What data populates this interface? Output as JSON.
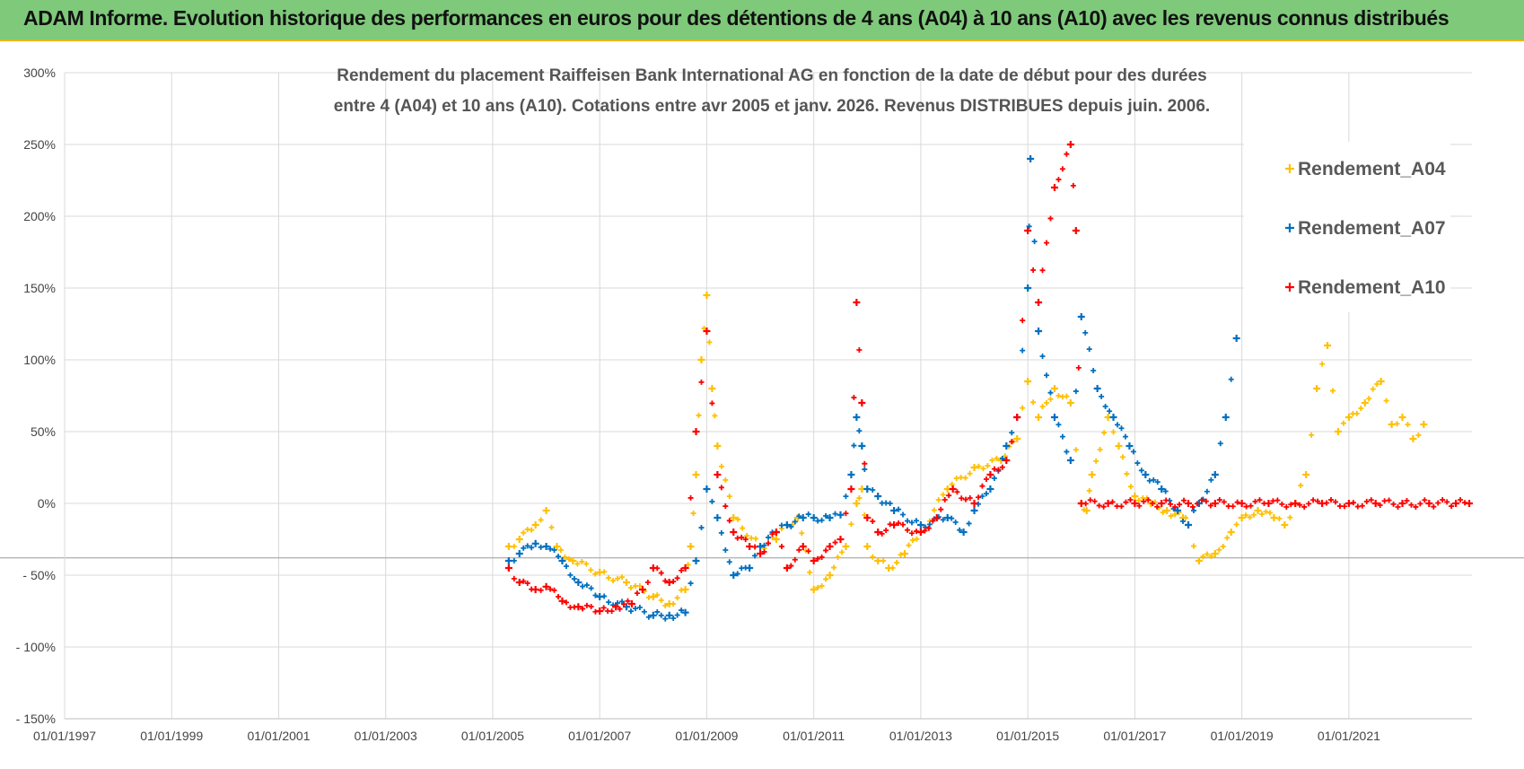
{
  "banner": {
    "title": "ADAM Informe. Evolution historique des performances en euros pour des détentions de 4 ans (A04) à 10 ans (A10) avec les revenus connus distribués"
  },
  "colors": {
    "banner_bg": "#7ec97a",
    "accent": "#f0b400",
    "a04": "#ffc000",
    "a07": "#0070c0",
    "a10": "#ff0000"
  },
  "chart_data": {
    "type": "scatter",
    "title_line1": "Rendement du placement Raiffeisen Bank International AG en fonction de la date de début pour des durées",
    "title_line2": "entre 4 (A04) et 10 ans (A10). Cotations entre avr 2005 et janv. 2026. Revenus DISTRIBUES depuis juin. 2006.",
    "xlabel": "",
    "ylabel": "",
    "xlim": [
      1997.0,
      2023.3
    ],
    "ylim": [
      -150,
      300
    ],
    "y_ticks": [
      300,
      250,
      200,
      150,
      100,
      50,
      0,
      -50,
      -100,
      -150
    ],
    "y_tick_labels": [
      "300%",
      "250%",
      "200%",
      "150%",
      "100%",
      "50%",
      "0%",
      "- 50%",
      "- 100%",
      "- 150%"
    ],
    "x_ticks": [
      1997,
      1999,
      2001,
      2003,
      2005,
      2007,
      2009,
      2011,
      2013,
      2015,
      2017,
      2019,
      2021
    ],
    "x_tick_labels": [
      "01/01/1997",
      "01/01/1999",
      "01/01/2001",
      "01/01/2003",
      "01/01/2005",
      "01/01/2007",
      "01/01/2009",
      "01/01/2011",
      "01/01/2013",
      "01/01/2015",
      "01/01/2017",
      "01/01/2019",
      "01/01/2021"
    ],
    "legend_position": "top-right",
    "series": [
      {
        "name": "Rendement_A04",
        "color": "#ffc000",
        "x": [
          2005.3,
          2005.5,
          2005.8,
          2006.0,
          2006.2,
          2006.5,
          2007.0,
          2007.5,
          2008.0,
          2008.3,
          2008.6,
          2008.7,
          2008.8,
          2008.9,
          2009.0,
          2009.1,
          2009.2,
          2009.5,
          2010.0,
          2010.3,
          2010.5,
          2010.7,
          2011.0,
          2011.3,
          2011.6,
          2011.8,
          2011.9,
          2012.0,
          2012.2,
          2012.4,
          2012.7,
          2013.0,
          2013.5,
          2014.0,
          2014.5,
          2014.8,
          2015.0,
          2015.2,
          2015.5,
          2015.8,
          2016.0,
          2016.1,
          2016.2,
          2016.5,
          2016.7,
          2017.0,
          2017.3,
          2017.6,
          2017.9,
          2018.0,
          2018.2,
          2018.5,
          2018.8,
          2019.0,
          2019.3,
          2019.6,
          2019.8,
          2020.0,
          2020.2,
          2020.4,
          2020.6,
          2020.8,
          2021.0,
          2021.3,
          2021.6,
          2021.8,
          2022.0,
          2022.2,
          2022.4
        ],
        "y": [
          -30,
          -25,
          -15,
          -5,
          -30,
          -40,
          -48,
          -55,
          -65,
          -70,
          -60,
          -30,
          20,
          100,
          145,
          80,
          40,
          -10,
          -30,
          -25,
          -15,
          -10,
          -60,
          -50,
          -30,
          0,
          10,
          -30,
          -40,
          -45,
          -35,
          -20,
          10,
          25,
          30,
          45,
          85,
          60,
          80,
          70,
          0,
          -5,
          20,
          60,
          40,
          5,
          0,
          -5,
          -10,
          -15,
          -40,
          -35,
          -20,
          -10,
          -5,
          -10,
          -15,
          0,
          20,
          80,
          110,
          50,
          60,
          70,
          85,
          55,
          60,
          45,
          55
        ]
      },
      {
        "name": "Rendement_A07",
        "color": "#0070c0",
        "x": [
          2005.3,
          2005.5,
          2005.8,
          2006.0,
          2006.3,
          2006.6,
          2007.0,
          2007.5,
          2008.0,
          2008.3,
          2008.6,
          2008.8,
          2009.0,
          2009.2,
          2009.5,
          2009.8,
          2010.0,
          2010.3,
          2010.5,
          2010.8,
          2011.0,
          2011.3,
          2011.5,
          2011.7,
          2011.8,
          2011.9,
          2012.0,
          2012.2,
          2012.5,
          2013.0,
          2013.5,
          2013.8,
          2014.0,
          2014.3,
          2014.6,
          2014.8,
          2015.0,
          2015.05,
          2015.2,
          2015.5,
          2015.8,
          2016.0,
          2016.3,
          2016.6,
          2016.9,
          2017.2,
          2017.5,
          2017.8,
          2018.0,
          2018.2,
          2018.5,
          2018.7,
          2018.9
        ],
        "y": [
          -40,
          -35,
          -28,
          -30,
          -40,
          -55,
          -65,
          -72,
          -78,
          -78,
          -76,
          -40,
          10,
          -10,
          -50,
          -45,
          -30,
          -20,
          -15,
          -10,
          -10,
          -10,
          -8,
          20,
          60,
          40,
          10,
          5,
          -5,
          -15,
          -10,
          -20,
          -5,
          10,
          40,
          60,
          150,
          240,
          120,
          60,
          30,
          130,
          80,
          60,
          40,
          20,
          10,
          -5,
          -15,
          0,
          20,
          60,
          115
        ]
      },
      {
        "name": "Rendement_A10",
        "color": "#ff0000",
        "x": [
          2005.3,
          2005.5,
          2005.8,
          2006.0,
          2006.3,
          2006.6,
          2007.0,
          2007.3,
          2007.6,
          2007.8,
          2008.0,
          2008.3,
          2008.6,
          2008.8,
          2009.0,
          2009.2,
          2009.5,
          2009.8,
          2010.0,
          2010.3,
          2010.5,
          2010.8,
          2011.0,
          2011.3,
          2011.5,
          2011.7,
          2011.8,
          2011.9,
          2012.0,
          2012.2,
          2012.5,
          2013.0,
          2013.3,
          2013.6,
          2014.0,
          2014.3,
          2014.6,
          2014.8,
          2015.0,
          2015.2,
          2015.5,
          2015.8,
          2015.9,
          2016.0,
          2016.5,
          2017.0,
          2017.5,
          2018.0,
          2018.5,
          2019.0,
          2019.5,
          2020.0,
          2020.5,
          2021.0,
          2021.5,
          2022.0,
          2022.5,
          2023.0,
          2023.25
        ],
        "y": [
          -45,
          -55,
          -60,
          -58,
          -68,
          -72,
          -75,
          -72,
          -70,
          -60,
          -45,
          -55,
          -45,
          50,
          120,
          20,
          -20,
          -30,
          -35,
          -20,
          -45,
          -30,
          -40,
          -30,
          -25,
          10,
          140,
          70,
          -10,
          -20,
          -15,
          -20,
          -10,
          10,
          0,
          20,
          30,
          60,
          190,
          140,
          220,
          250,
          190,
          0,
          0,
          0,
          0,
          0,
          0,
          0,
          0,
          0,
          0,
          0,
          0,
          0,
          0,
          0,
          0
        ]
      }
    ]
  }
}
